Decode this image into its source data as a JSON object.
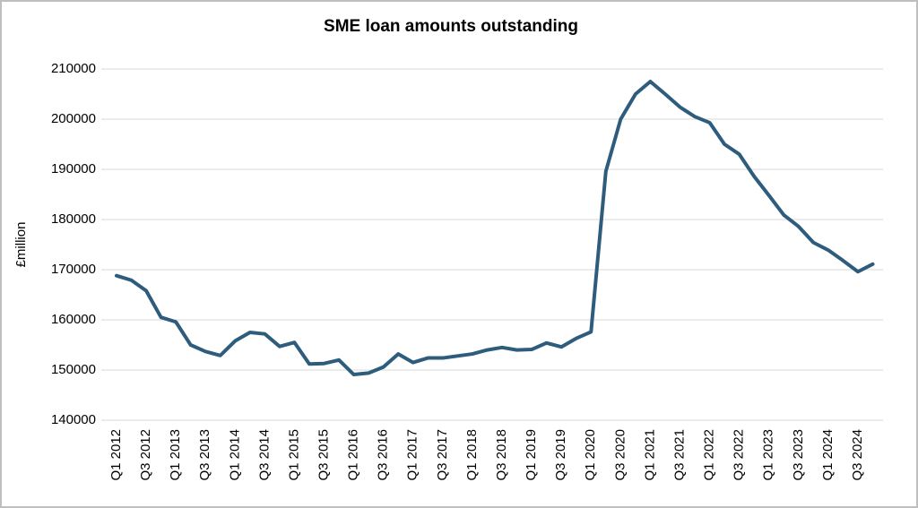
{
  "chart_data": {
    "type": "line",
    "title": "SME loan amounts outstanding",
    "y_label": "£million",
    "categories": [
      "Q1 2012",
      null,
      "Q3 2012",
      null,
      "Q1 2013",
      null,
      "Q3 2013",
      null,
      "Q1 2014",
      null,
      "Q3 2014",
      null,
      "Q1 2015",
      null,
      "Q3 2015",
      null,
      "Q1 2016",
      null,
      "Q3 2016",
      null,
      "Q1 2017",
      null,
      "Q3 2017",
      null,
      "Q1 2018",
      null,
      "Q3 2018",
      null,
      "Q1 2019",
      null,
      "Q3 2019",
      null,
      "Q1 2020",
      null,
      "Q3 2020",
      null,
      "Q1 2021",
      null,
      "Q3 2021",
      null,
      "Q1 2022",
      null,
      "Q3 2022",
      null,
      "Q1 2023",
      null,
      "Q3 2023",
      null,
      "Q1 2024",
      null,
      "Q3 2024",
      null
    ],
    "values": [
      168800,
      167900,
      165800,
      160500,
      159600,
      155000,
      153700,
      152900,
      155800,
      157500,
      157200,
      154700,
      155500,
      151200,
      151300,
      152000,
      149100,
      149400,
      150600,
      153200,
      151500,
      152400,
      152400,
      152800,
      153200,
      154000,
      154500,
      154000,
      154100,
      155400,
      154600,
      156300,
      157600,
      189600,
      200000,
      205000,
      207500,
      205000,
      202400,
      200500,
      199300,
      195000,
      193000,
      188600,
      184800,
      180900,
      178600,
      175400,
      173900,
      171800,
      169600,
      171100
    ],
    "color": "#2e5c7d",
    "ylim": [
      140000,
      210000
    ],
    "yticks": [
      140000,
      150000,
      160000,
      170000,
      180000,
      190000,
      200000,
      210000
    ],
    "grid": true
  }
}
